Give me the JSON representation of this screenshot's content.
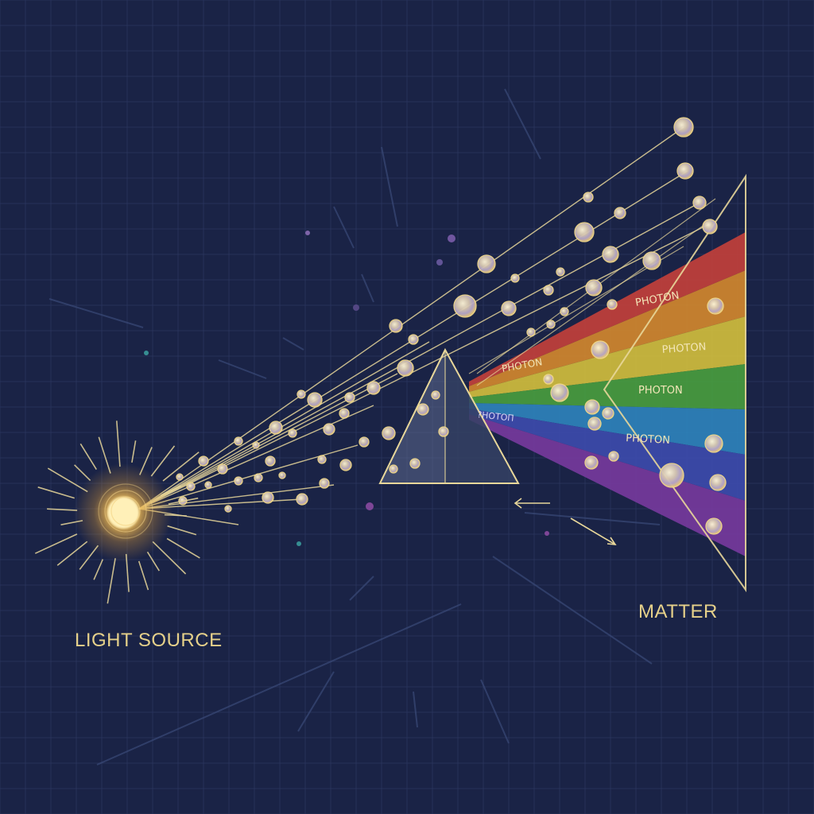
{
  "labels": {
    "light_source": "LIGHT SOURCE",
    "matter": "MATTER",
    "photon": "PHOTON",
    "garbled_photon": "?HOTOΠ"
  },
  "colors": {
    "background": "#1a2346",
    "grid": "#2c3760",
    "beam": "#e8d79a",
    "label": "#e6d18a",
    "spectrum": [
      "#c9413a",
      "#d98b2c",
      "#d8c43c",
      "#4aa23d",
      "#2f86c0",
      "#3d4cb0",
      "#7a3aa0"
    ]
  },
  "components": [
    "light-source",
    "photon-beam",
    "prism",
    "spectrum",
    "matter"
  ]
}
